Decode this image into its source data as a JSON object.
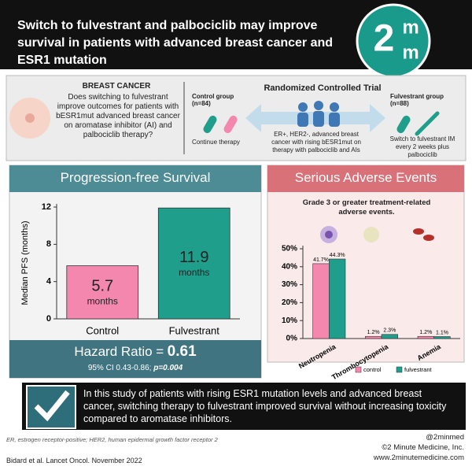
{
  "header": {
    "title": "Switch to fulvestrant and palbociclib may improve survival in patients with advanced breast cancer and ESR1 mutation",
    "logo": {
      "digit": "2",
      "top": "m",
      "bottom": "m"
    }
  },
  "study": {
    "topic": "BREAST CANCER",
    "question": "Does switching to fulvestrant improve outcomes for patients with bESR1mut advanced breast cancer on aromatase inhibitor (AI) and palbociclib therapy?",
    "design": "Randomized Controlled Trial",
    "population": "ER+, HER2-, advanced breast cancer with rising bESR1mut on therapy with palbociclib and AIs",
    "control_group": "Control group (n=84)",
    "control_arm": "Continue therapy",
    "treatment_group": "Fulvestrant group (n=88)",
    "treatment_arm": "Switch to fulvestrant IM every 2 weeks plus palbociclib"
  },
  "chart_data": [
    {
      "type": "bar",
      "title": "Progression-free Survival",
      "y_label": "Median PFS (months)",
      "categories": [
        "Control",
        "Fulvestrant"
      ],
      "values": [
        5.7,
        11.9
      ],
      "value_unit": "months",
      "colors": [
        "#f487ad",
        "#1f9e8c"
      ],
      "ylim": [
        0,
        12
      ],
      "yticks": [
        0,
        4,
        8,
        12
      ],
      "grid": false,
      "hazard_ratio_label": "Hazard Ratio =",
      "hazard_ratio": "0.61",
      "ci": "95% CI 0.43-0.86;",
      "p_value": "p=0.004"
    },
    {
      "type": "bar",
      "title": "Serious Adverse Events",
      "subtitle": "Grade 3 or greater treatment-related adverse events.",
      "categories": [
        "Neutropenia",
        "Thrombocytopenia",
        "Anemia"
      ],
      "series": [
        {
          "name": "control",
          "color": "#f487ad",
          "values": [
            41.7,
            1.2,
            1.2
          ],
          "value_labels": [
            "41.7%",
            "1.2%",
            "1.2%"
          ]
        },
        {
          "name": "fulvestrant",
          "color": "#1f9e8c",
          "values": [
            44.3,
            2.3,
            1.1
          ],
          "value_labels": [
            "44.3%",
            "2.3%",
            "1.1%"
          ]
        }
      ],
      "ylim": [
        0,
        50
      ],
      "yticks": [
        {
          "value": 0,
          "label": "0%"
        },
        {
          "value": 10,
          "label": "10%"
        },
        {
          "value": 20,
          "label": "20%"
        },
        {
          "value": 30,
          "label": "30%"
        },
        {
          "value": 40,
          "label": "40%"
        },
        {
          "value": 50,
          "label": "50%"
        }
      ],
      "grid": false,
      "legend": "bottom"
    }
  ],
  "conclusion": "In this study of patients with rising ESR1 mutation levels and advanced breast cancer, switching therapy to fulvestrant improved survival without increasing toxicity compared to aromatase inhibitors.",
  "footer": {
    "abbreviations": "ER, estrogen receptor-positive; HER2, human epidermal growth factor receptor 2",
    "citation": "Bidard et al. Lancet Oncol. November 2022",
    "handle": "@2minmed",
    "copyright": "©2 Minute Medicine, Inc.",
    "website": "www.2minutemedicine.com"
  }
}
